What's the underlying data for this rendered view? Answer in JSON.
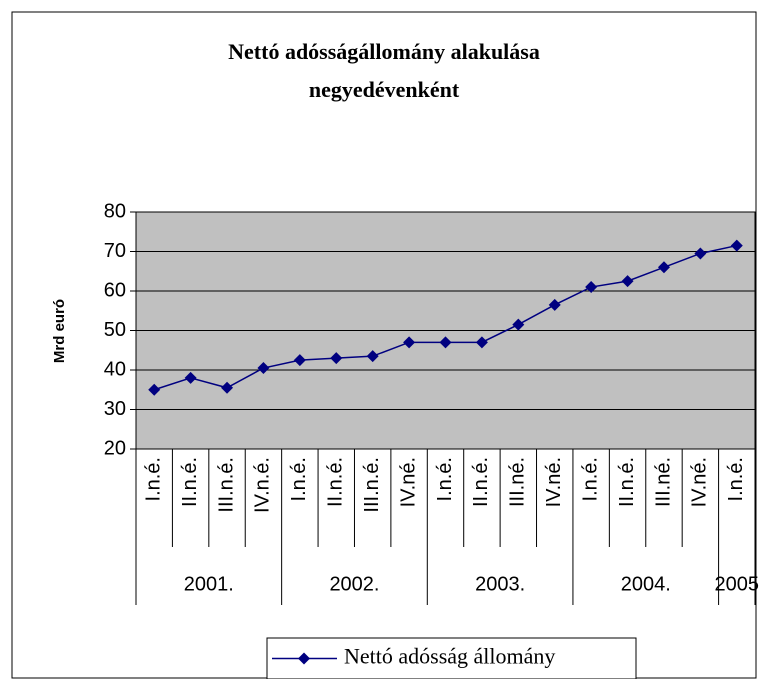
{
  "chart_data": {
    "type": "line",
    "title": [
      "Nettó adósságállomány alakulása",
      "negyedévenként"
    ],
    "y_label": "Mrd euró",
    "category_groups": [
      {
        "label": "2001.",
        "categories": [
          "I.n.é.",
          "II.n.é.",
          "III.n.é.",
          "IV.n.é."
        ]
      },
      {
        "label": "2002.",
        "categories": [
          "I.n.é.",
          "II.n.é.",
          "III.n.é.",
          "IV.né."
        ]
      },
      {
        "label": "2003.",
        "categories": [
          "I.n.é.",
          "II.n.é.",
          "III.né.",
          "IV.né."
        ]
      },
      {
        "label": "2004.",
        "categories": [
          "I.n.é.",
          "II.n.é.",
          "III.né.",
          "IV.né."
        ]
      },
      {
        "label": "2005",
        "categories": [
          "I.n.é."
        ]
      }
    ],
    "series": [
      {
        "name": "Nettó adósság állomány",
        "color": "#000080",
        "values": [
          35,
          38,
          35.5,
          40.5,
          42.5,
          43,
          43.5,
          47,
          47,
          47,
          51.5,
          56.5,
          61,
          62.5,
          66,
          69.5,
          71.5
        ]
      }
    ],
    "ylim": [
      20,
      80
    ],
    "yticks": [
      20,
      30,
      40,
      50,
      60,
      70,
      80
    ],
    "grid": true,
    "plot_background": "#c0c0c0",
    "legend": "bottom"
  }
}
